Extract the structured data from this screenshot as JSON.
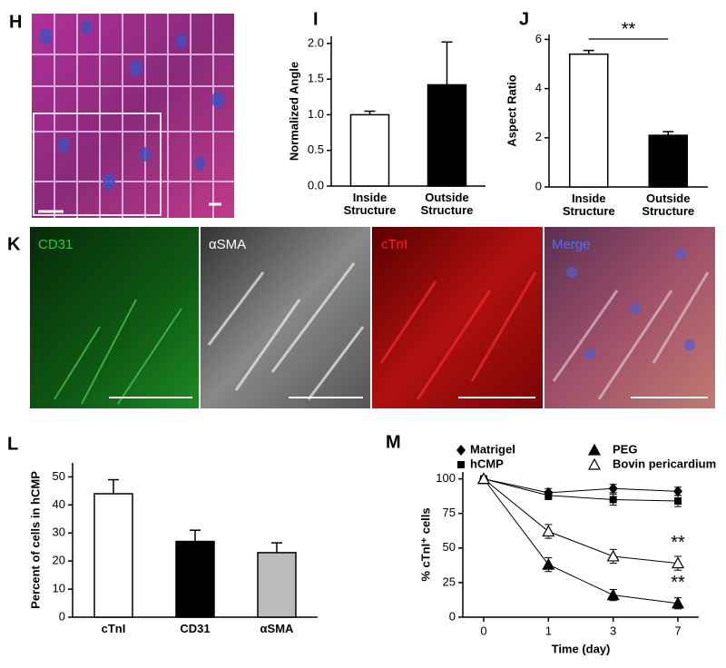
{
  "figure": {
    "panel_labels": [
      "H",
      "I",
      "J",
      "K",
      "L",
      "M"
    ],
    "image_labels": [
      "CD31",
      "αSMA",
      "cTnI",
      "Merge"
    ]
  },
  "chart_data": [
    {
      "type": "bar",
      "ylabel": "Normalized Angle",
      "categories": [
        "Inside Structure",
        "Outside Structure"
      ],
      "values": [
        1.0,
        1.42
      ],
      "errors": [
        0.05,
        0.6
      ],
      "colors": [
        "#ffffff",
        "#000000"
      ],
      "ylim": [
        0,
        2.1
      ],
      "yticks": [
        {
          "value": 0,
          "label": "0.0"
        },
        0.5,
        {
          "value": 1,
          "label": "1.0"
        },
        1.5,
        {
          "value": 2,
          "label": "2.0"
        }
      ]
    },
    {
      "type": "bar",
      "ylabel": "Aspect Ratio",
      "categories": [
        "Inside Structure",
        "Outside Structure"
      ],
      "values": [
        5.4,
        2.1
      ],
      "errors": [
        0.15,
        0.15
      ],
      "colors": [
        "#ffffff",
        "#000000"
      ],
      "ylim": [
        0,
        6.2
      ],
      "yticks": [
        0,
        2,
        4,
        6
      ],
      "significance": "**"
    },
    {
      "type": "bar",
      "ylabel": "Percent of cells in hCMP",
      "categories": [
        "cTnI",
        "CD31",
        "αSMA"
      ],
      "values": [
        44,
        27,
        23
      ],
      "errors": [
        5,
        4,
        3.5
      ],
      "colors": [
        "#ffffff",
        "#000000",
        "#bbbbbb"
      ],
      "ylim": [
        0,
        55
      ],
      "yticks": [
        0,
        10,
        20,
        30,
        40,
        50
      ]
    },
    {
      "type": "line",
      "xlabel": "Time (day)",
      "ylabel": "% cTnI⁺ cells",
      "categories": [
        "0",
        "1",
        "3",
        "7"
      ],
      "ylim": [
        0,
        105
      ],
      "yticks": [
        0,
        25,
        50,
        75,
        100
      ],
      "series": [
        {
          "name": "Matrigel",
          "marker": "diamond",
          "color": "#000000",
          "values": [
            100,
            90,
            93,
            91
          ],
          "errors": [
            2,
            3,
            3,
            3
          ]
        },
        {
          "name": "hCMP",
          "marker": "square",
          "color": "#000000",
          "values": [
            100,
            88,
            85,
            84
          ],
          "errors": [
            2,
            3,
            4,
            4
          ]
        },
        {
          "name": "PEG",
          "marker": "triangle",
          "color": "#000000",
          "values": [
            100,
            38,
            16,
            10
          ],
          "errors": [
            2,
            5,
            4,
            4
          ],
          "note": "**"
        },
        {
          "name": "Bovin pericardium",
          "marker": "triangle-open",
          "color": "#000000",
          "values": [
            100,
            62,
            44,
            39
          ],
          "errors": [
            2,
            5,
            5,
            5
          ],
          "note": "**"
        }
      ]
    }
  ]
}
